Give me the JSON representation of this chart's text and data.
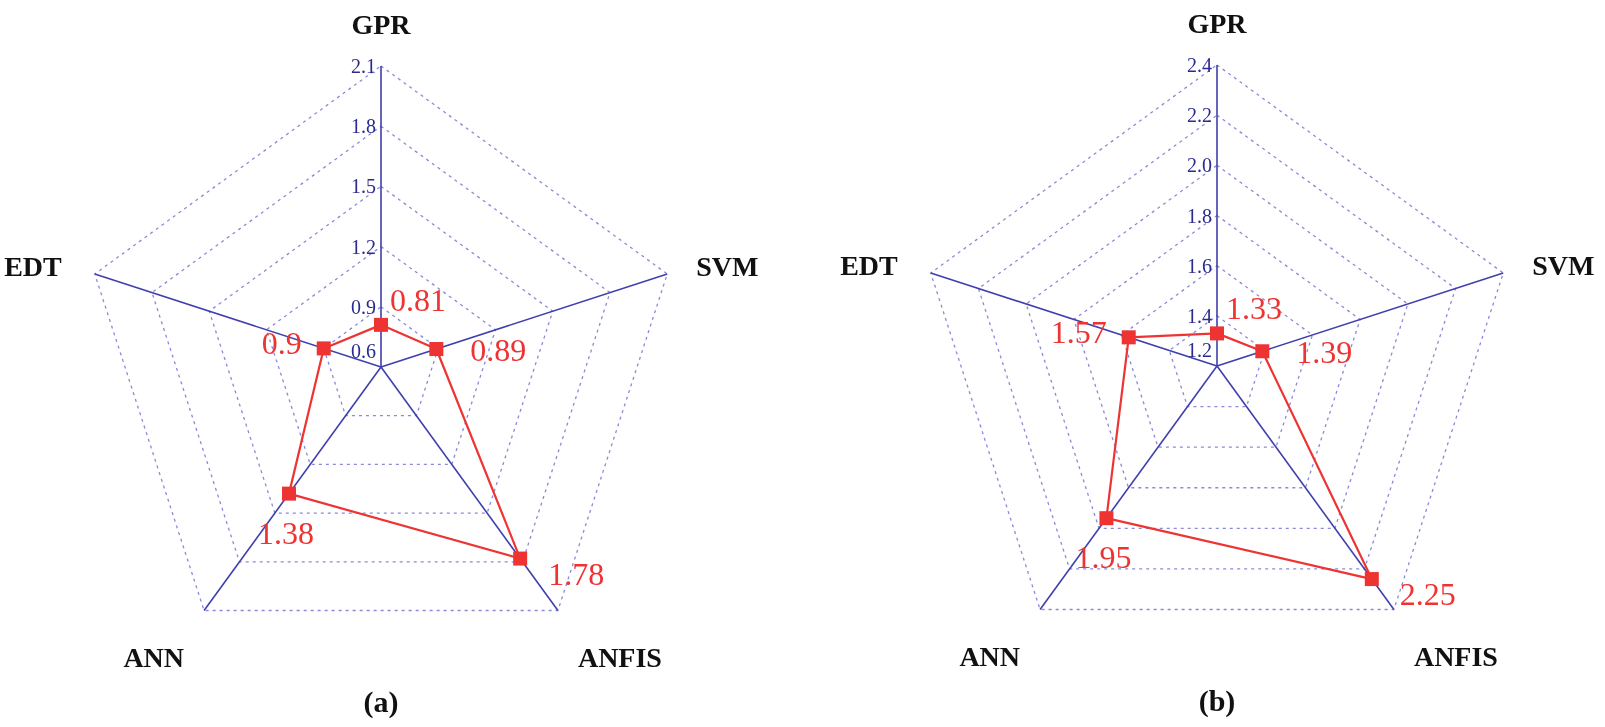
{
  "chart_data": [
    {
      "type": "radar",
      "title": "(a)",
      "categories": [
        "GPR",
        "SVM",
        "ANFIS",
        "ANN",
        "EDT"
      ],
      "series": [
        {
          "color": "#ee3333",
          "values": [
            0.81,
            0.89,
            1.78,
            1.38,
            0.9
          ]
        }
      ],
      "ylim": [
        0.6,
        2.1
      ],
      "yticks": [
        0.6,
        0.9,
        1.2,
        1.5,
        1.8,
        2.1
      ],
      "grid": true,
      "data_labels": true,
      "marker": "square",
      "line_style": "solid"
    },
    {
      "type": "radar",
      "title": "(b)",
      "categories": [
        "GPR",
        "SVM",
        "ANFIS",
        "ANN",
        "EDT"
      ],
      "series": [
        {
          "color": "#ee3333",
          "values": [
            1.33,
            1.39,
            2.25,
            1.95,
            1.57
          ]
        }
      ],
      "ylim": [
        1.2,
        2.4
      ],
      "yticks": [
        1.2,
        1.4,
        1.6,
        1.8,
        {
          "value": 2.0,
          "label": "2.0"
        },
        2.2,
        2.4
      ],
      "grid": true,
      "data_labels": true,
      "marker": "square",
      "line_style": "solid"
    }
  ]
}
